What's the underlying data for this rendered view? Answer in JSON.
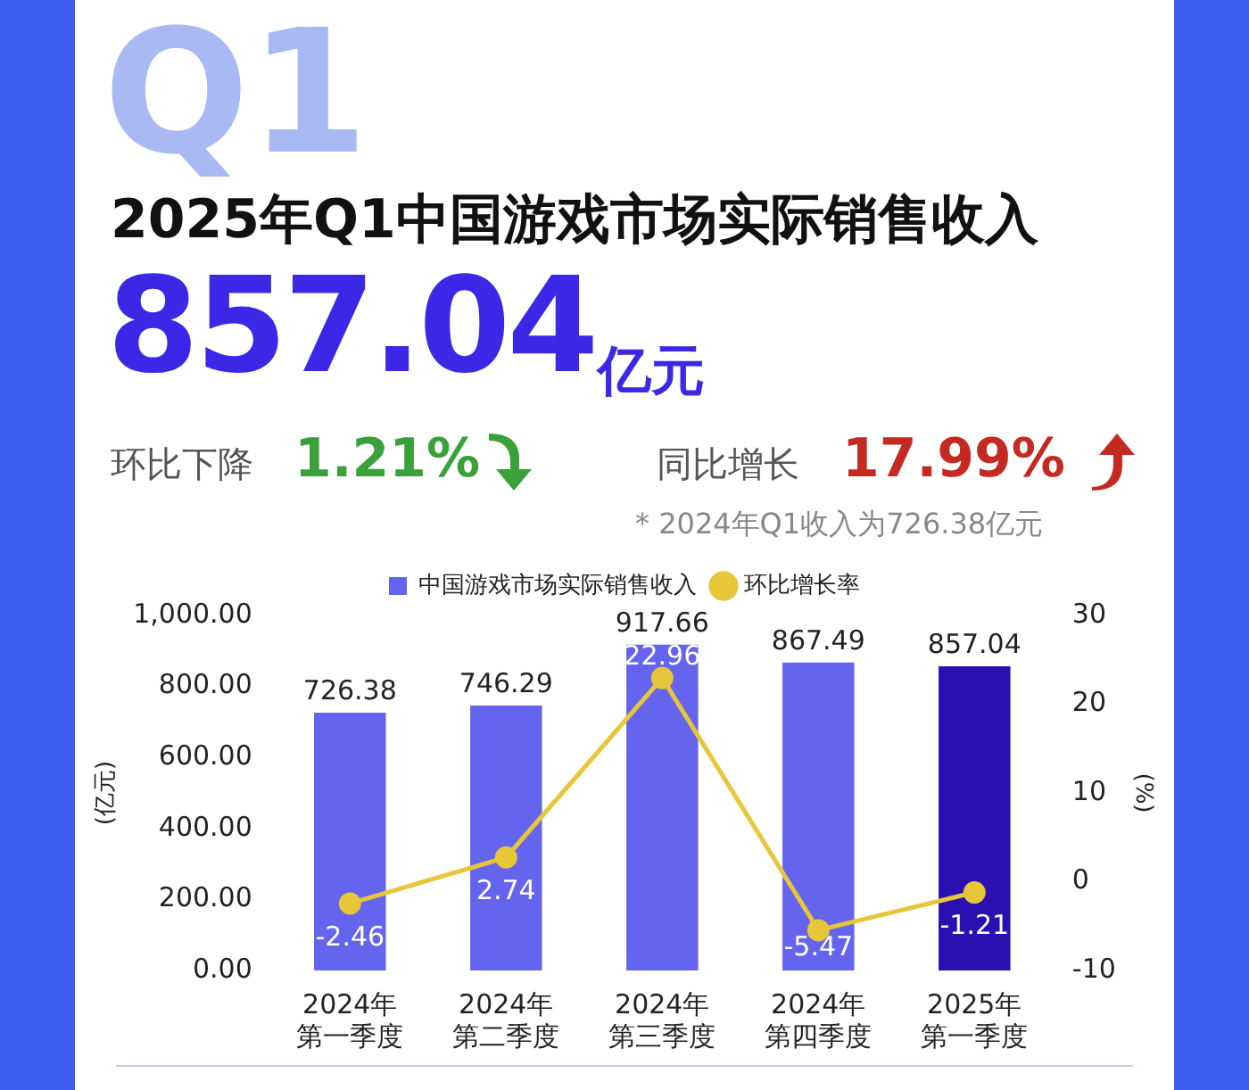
{
  "chart_data": {
    "type": "bar",
    "title": "2025年Q1中国游戏市场实际销售收入",
    "annotations": [
      "Q1",
      "857.04",
      "亿元",
      "环比下降",
      "1.21%",
      "同比增长",
      "17.99%",
      "* 2024年Q1收入为726.38亿元"
    ],
    "categories": [
      "2024年第一季度",
      "2024年第二季度",
      "2024年第三季度",
      "2024年第四季度",
      "2025年第一季度"
    ],
    "series": [
      {
        "name": "中国游戏市场实际销售收入",
        "color": "#6564ee",
        "colors": [
          "#6564ee",
          "#6564ee",
          "#6564ee",
          "#6564ee",
          "#2a10b0"
        ],
        "values": [
          726.38,
          746.29,
          917.66,
          867.49,
          857.04
        ]
      },
      {
        "name": "环比增长率",
        "type": "line",
        "axis": "y2",
        "color": "#e8c63a",
        "marker": "circle",
        "values": [
          -2.46,
          2.74,
          22.96,
          -5.47,
          -1.21
        ]
      }
    ],
    "ylabel": "(亿元)",
    "y2label": "(%)",
    "ylim": [
      0,
      1000
    ],
    "yticks": [
      {
        "value": 0,
        "label": "0.00"
      },
      {
        "value": 200,
        "label": "200.00"
      },
      {
        "value": 400,
        "label": "400.00"
      },
      {
        "value": 600,
        "label": "600.00"
      },
      {
        "value": 800,
        "label": "800.00"
      },
      {
        "value": 1000,
        "label": "1,000.00"
      }
    ],
    "y2lim": [
      -10,
      30
    ],
    "y2ticks": [
      -10,
      0,
      10,
      20,
      30
    ],
    "data_labels": true,
    "grid": false,
    "legend": "top"
  }
}
